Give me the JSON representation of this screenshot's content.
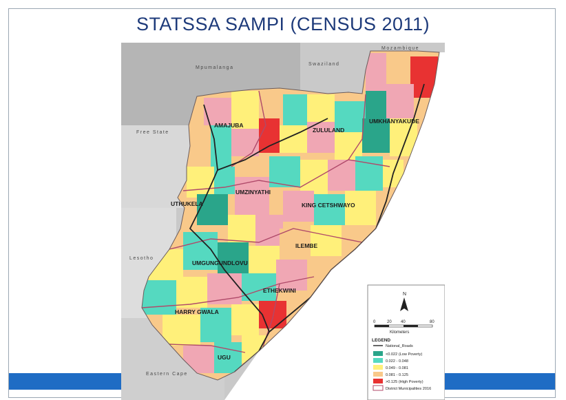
{
  "slide": {
    "title": "STATSSA SAMPI (CENSUS 2011)"
  },
  "map": {
    "neighbours": {
      "mozambique": "Mozambique",
      "mpumalanga": "Mpumalanga",
      "swaziland": "Swaziland",
      "free_state": "Free State",
      "lesotho": "Lesotho",
      "eastern_cape": "Eastern Cape"
    },
    "districts": {
      "amajuba": "AMAJUBA",
      "zululand": "ZULULAND",
      "umkhanyakude": "UMKHANYAKUDE",
      "umzinyathi": "UMZINYATHI",
      "uthukela": "UTHUKELA",
      "king_cetshwayo": "KING CETSHWAYO",
      "ilembe": "ILEMBE",
      "umgungundlovu": "UMGUNGUNDLOVU",
      "ethekwini": "ETHEKWINI",
      "harry_gwala": "HARRY GWALA",
      "ugu": "UGU"
    },
    "colors": {
      "neighbour_grey": "#c9c9c9",
      "sea": "#ffffff",
      "low": "#2aa58a",
      "mid_low": "#55d9c0",
      "mid": "#fff07a",
      "mid_high": "#f9c98a",
      "high": "#e83232",
      "pink": "#f0a7b4",
      "roads": "#222222",
      "boundary": "#b04a6a"
    }
  },
  "legend": {
    "north": "N",
    "scale_ticks": [
      "0",
      "20",
      "40",
      "80"
    ],
    "scale_unit": "Kilometers",
    "title": "LEGEND",
    "items": [
      {
        "label": "National_Roads",
        "color": "#333333",
        "kind": "line"
      },
      {
        "label": "<0.022 (Low Poverty)",
        "color": "#2aa58a",
        "kind": "swatch"
      },
      {
        "label": "0.022 - 0.048",
        "color": "#55d9c0",
        "kind": "swatch"
      },
      {
        "label": "0.049 - 0.081",
        "color": "#fff07a",
        "kind": "swatch"
      },
      {
        "label": "0.081 - 0.125",
        "color": "#f9c98a",
        "kind": "swatch"
      },
      {
        "label": ">0.125 (High Poverty)",
        "color": "#e83232",
        "kind": "swatch"
      },
      {
        "label": "District Municipalities 2016",
        "color": "#ffffff",
        "kind": "outline"
      }
    ]
  }
}
